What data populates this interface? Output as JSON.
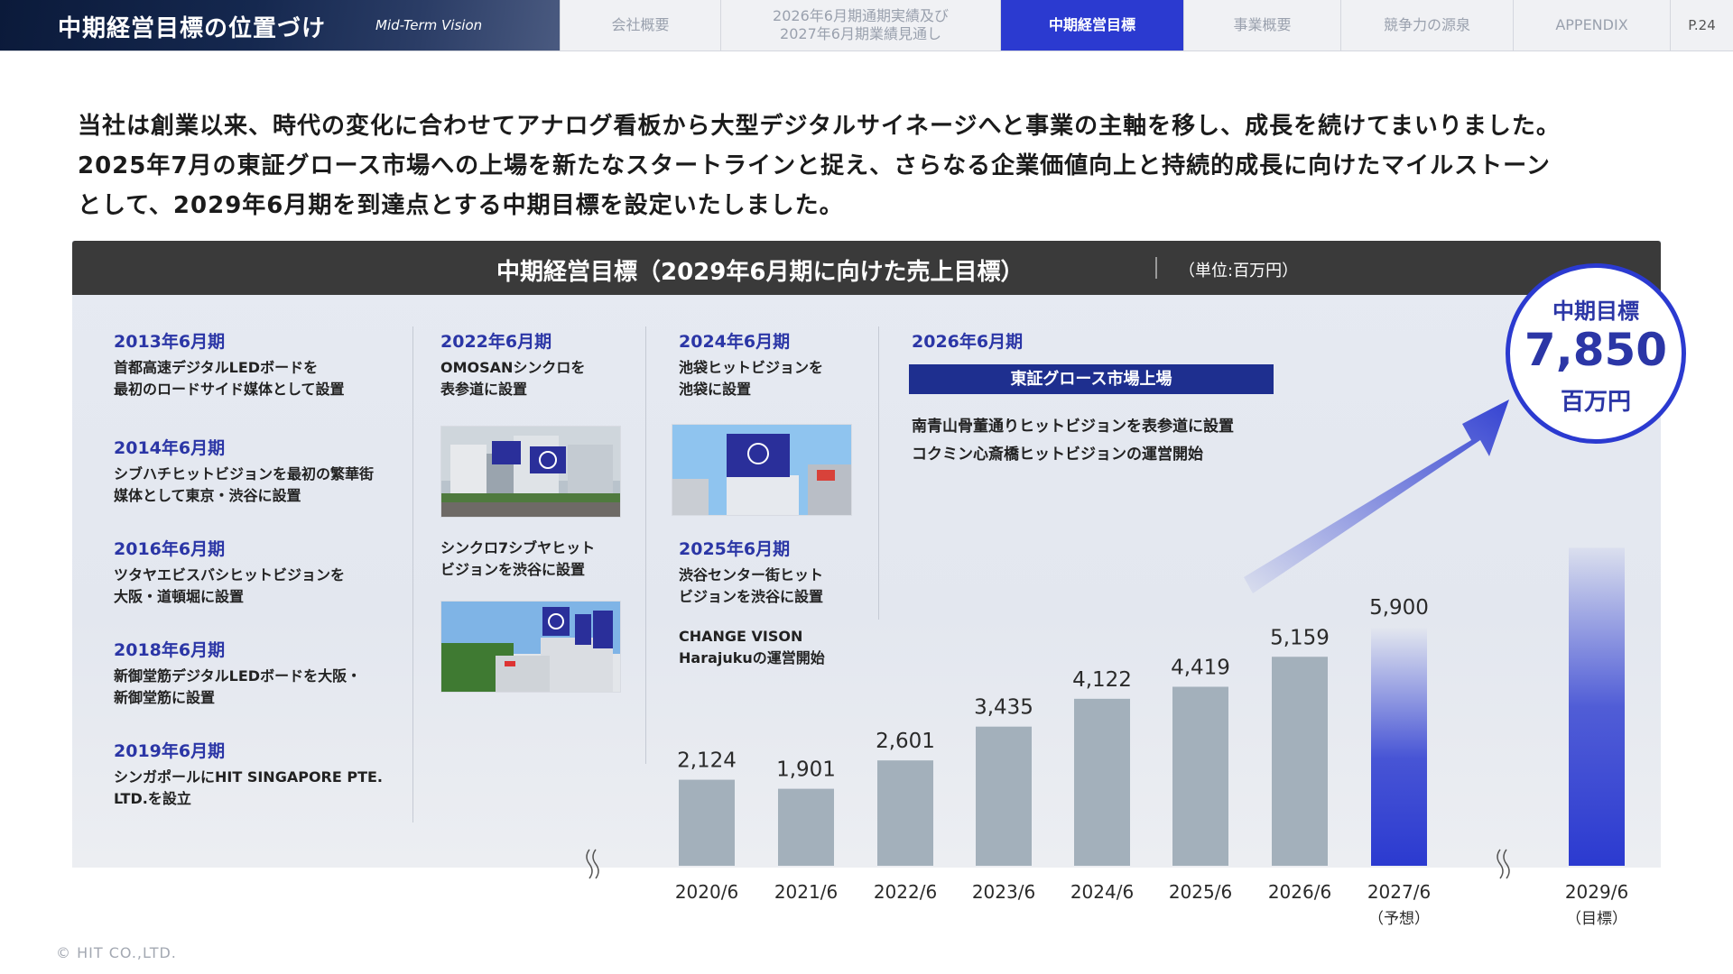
{
  "header": {
    "title": "中期経営目標の位置づけ",
    "subtitle": "Mid-Term Vision",
    "tabs": [
      {
        "label": "会社概要"
      },
      {
        "label": "2026年6月期通期実績及び\n2027年6月期業績見通し"
      },
      {
        "label": "中期経営目標"
      },
      {
        "label": "事業概要"
      },
      {
        "label": "競争力の源泉"
      },
      {
        "label": "APPENDIX"
      }
    ],
    "page": "P.24"
  },
  "intro": {
    "line1": "当社は創業以来、時代の変化に合わせてアナログ看板から大型デジタルサイネージへと事業の主軸を移し、成長を続けてまいりました。",
    "line2": "2025年7月の東証グロース市場への上場を新たなスタートラインと捉え、さらなる企業価値向上と持続的成長に向けたマイルストーン",
    "line3": "として、2029年6月期を到達点とする中期目標を設定いたしました。"
  },
  "panel": {
    "title": "中期経営目標（2029年6月期に向けた売上目標）",
    "unit": "（単位:百万円）"
  },
  "history": [
    {
      "year": "2013年6月期",
      "text": "首都高速デジタルLEDボードを\n最初のロードサイド媒体として設置"
    },
    {
      "year": "2014年6月期",
      "text": "シブハチヒットビジョンを最初の繁華街\n媒体として東京・渋谷に設置"
    },
    {
      "year": "2016年6月期",
      "text": "ツタヤエビスバシヒットビジョンを\n大阪・道頓堀に設置"
    },
    {
      "year": "2018年6月期",
      "text": "新御堂筋デジタルLEDボードを大阪・\n新御堂筋に設置"
    },
    {
      "year": "2019年6月期",
      "text": "シンガポールにHIT SINGAPORE PTE.\nLTD.を設立"
    }
  ],
  "col2": [
    {
      "year": "2022年6月期",
      "text": "OMOSANシンクロを\n表参道に設置"
    },
    {
      "year": "",
      "text": "シンクロ7シブヤヒット\nビジョンを渋谷に設置"
    }
  ],
  "col3": [
    {
      "year": "2024年6月期",
      "text": "池袋ヒットビジョンを\n池袋に設置"
    },
    {
      "year": "2025年6月期",
      "text": "渋谷センター街ヒット\nビジョンを渋谷に設置"
    },
    {
      "year": "",
      "text": "CHANGE VISON\nHarajukuの運営開始"
    }
  ],
  "col4": {
    "year": "2026年6月期",
    "banner": "東証グロース市場上場",
    "items": [
      "南青山骨董通りヒットビジョンを表参道に設置",
      "コクミン心斎橋ヒットビジョンの運営開始"
    ]
  },
  "target": {
    "label": "中期目標",
    "value": "7,850",
    "unit": "百万円"
  },
  "copyright": "© HIT CO.,LTD.",
  "colors": {
    "accent": "#2b3ad0",
    "actual_bar": "#a3b0bb",
    "header_dark": "#3a3a3a"
  },
  "chart_data": {
    "type": "bar",
    "categories": [
      "2020/6",
      "2021/6",
      "2022/6",
      "2023/6",
      "2024/6",
      "2025/6",
      "2026/6",
      "2027/6",
      "2029/6"
    ],
    "category_notes": [
      "",
      "",
      "",
      "",
      "",
      "",
      "",
      "（予想）",
      "（目標）"
    ],
    "values": [
      2124,
      1901,
      2601,
      3435,
      4122,
      4419,
      5159,
      5900,
      7850
    ],
    "value_labels": [
      "2,124",
      "1,901",
      "2,601",
      "3,435",
      "4,122",
      "4,419",
      "5,159",
      "5,900",
      ""
    ],
    "bar_kinds": [
      "actual",
      "actual",
      "actual",
      "actual",
      "actual",
      "actual",
      "actual",
      "forecast",
      "target"
    ],
    "title": "中期経営目標（2029年6月期に向けた売上目標）",
    "unit": "百万円",
    "ylim": [
      0,
      8500
    ]
  }
}
